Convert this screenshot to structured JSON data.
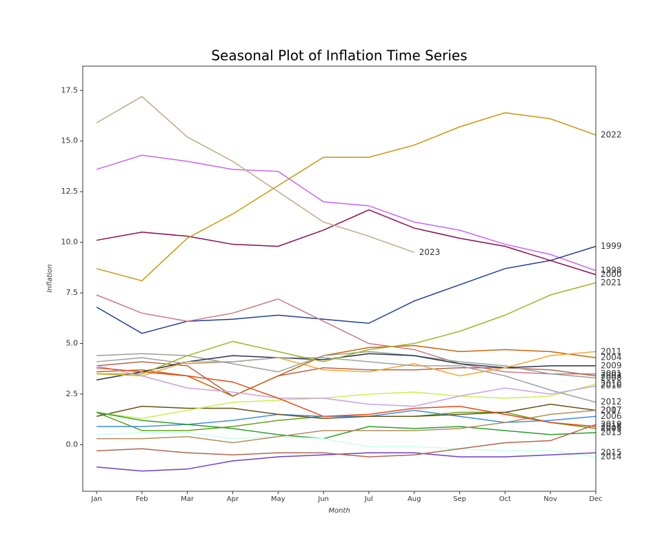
{
  "chart_data": {
    "type": "line",
    "title": "Seasonal Plot of Inflation Time Series",
    "xlabel": "Month",
    "ylabel": "Inflation",
    "categories": [
      "Jan",
      "Feb",
      "Mar",
      "Apr",
      "May",
      "Jun",
      "Jul",
      "Aug",
      "Sep",
      "Oct",
      "Nov",
      "Dec"
    ],
    "ylim": [
      -2.3,
      18.7
    ],
    "yticks": [
      {
        "value": 0,
        "label": "0.0"
      },
      {
        "value": 2.5,
        "label": "2.5"
      },
      {
        "value": 5,
        "label": "5.0"
      },
      {
        "value": 7.5,
        "label": "7.5"
      },
      {
        "value": 10,
        "label": "10.0"
      },
      {
        "value": 12.5,
        "label": "12.5"
      },
      {
        "value": 15,
        "label": "15.0"
      },
      {
        "value": 17.5,
        "label": "17.5"
      }
    ],
    "series": [
      {
        "name": "1998",
        "color": "#c864f0",
        "values": [
          13.6,
          14.3,
          14.0,
          13.6,
          13.5,
          12.0,
          11.8,
          11.0,
          10.6,
          9.9,
          9.4,
          8.6
        ]
      },
      {
        "name": "1999",
        "color": "#1e3c96",
        "values": [
          6.8,
          5.5,
          6.1,
          6.2,
          6.4,
          6.2,
          6.0,
          7.1,
          7.9,
          8.7,
          9.1,
          9.8
        ]
      },
      {
        "name": "2000",
        "color": "#8b0a50",
        "values": [
          10.1,
          10.5,
          10.3,
          9.9,
          9.8,
          10.6,
          11.6,
          10.7,
          10.2,
          9.8,
          9.1,
          8.4
        ]
      },
      {
        "name": "2001",
        "color": "#c87882",
        "values": [
          7.4,
          6.5,
          6.1,
          6.5,
          7.2,
          6.1,
          5.0,
          4.7,
          4.0,
          3.6,
          3.5,
          3.5
        ]
      },
      {
        "name": "2003",
        "color": "#b46446",
        "values": [
          3.9,
          4.1,
          3.9,
          2.4,
          3.4,
          3.8,
          3.7,
          3.7,
          3.8,
          3.8,
          3.7,
          3.4
        ]
      },
      {
        "name": "2004",
        "color": "#c8640a",
        "values": [
          3.6,
          3.7,
          3.4,
          2.4,
          3.4,
          4.4,
          4.8,
          4.9,
          4.6,
          4.7,
          4.6,
          4.3
        ]
      },
      {
        "name": "2005",
        "color": "#64a014",
        "values": [
          1.6,
          0.7,
          0.7,
          0.9,
          1.2,
          1.4,
          1.4,
          1.4,
          1.6,
          1.6,
          1.1,
          0.8
        ]
      },
      {
        "name": "2006",
        "color": "#3c8ce6",
        "values": [
          0.9,
          0.9,
          1.0,
          1.2,
          1.5,
          1.4,
          1.4,
          1.7,
          1.4,
          1.1,
          1.2,
          1.4
        ]
      },
      {
        "name": "2007",
        "color": "#645014",
        "values": [
          1.4,
          1.9,
          1.8,
          1.8,
          1.5,
          1.3,
          1.4,
          1.4,
          1.5,
          1.6,
          2.0,
          1.7
        ]
      },
      {
        "name": "2008",
        "color": "#96a096",
        "values": [
          4.4,
          4.5,
          4.4,
          4.0,
          3.6,
          4.4,
          4.6,
          4.4,
          4.1,
          3.9,
          3.5,
          3.3
        ]
      },
      {
        "name": "2009",
        "color": "#283250",
        "values": [
          3.2,
          3.6,
          4.1,
          4.4,
          4.3,
          4.2,
          4.5,
          4.4,
          4.0,
          3.8,
          3.9,
          3.9
        ]
      },
      {
        "name": "2010",
        "color": "#c8f050",
        "values": [
          1.6,
          1.3,
          1.7,
          2.1,
          2.2,
          2.3,
          2.5,
          2.6,
          2.4,
          2.3,
          2.4,
          3.0
        ]
      },
      {
        "name": "2011",
        "color": "#f0a830",
        "values": [
          3.5,
          3.4,
          4.1,
          4.1,
          4.3,
          3.7,
          3.6,
          4.0,
          3.4,
          3.8,
          4.4,
          4.6
        ]
      },
      {
        "name": "2012",
        "color": "#a0a0a0",
        "values": [
          4.1,
          4.3,
          4.0,
          4.1,
          4.3,
          4.3,
          4.1,
          3.9,
          3.9,
          3.4,
          2.7,
          2.1
        ]
      },
      {
        "name": "2013",
        "color": "#28a028",
        "values": [
          1.6,
          1.2,
          1.0,
          0.8,
          0.5,
          0.3,
          0.9,
          0.8,
          0.9,
          0.7,
          0.5,
          0.6
        ]
      },
      {
        "name": "2014",
        "color": "#c8fff0",
        "values": [
          0.5,
          0.6,
          0.6,
          0.3,
          0.4,
          0.3,
          -0.1,
          -0.1,
          -0.2,
          -0.3,
          -0.3,
          -0.6
        ]
      },
      {
        "name": "2015",
        "color": "#6e3cc8",
        "values": [
          -1.1,
          -1.3,
          -1.2,
          -0.8,
          -0.6,
          -0.5,
          -0.4,
          -0.4,
          -0.6,
          -0.6,
          -0.5,
          -0.4
        ]
      },
      {
        "name": "2016",
        "color": "#c8a0e6",
        "values": [
          3.9,
          3.4,
          2.8,
          2.6,
          2.3,
          2.3,
          2.0,
          1.9,
          2.4,
          2.8,
          2.5,
          2.9
        ]
      },
      {
        "name": "2017",
        "color": "#b48c5a",
        "values": [
          0.3,
          0.3,
          0.4,
          0.1,
          0.4,
          0.7,
          0.7,
          0.7,
          0.8,
          1.1,
          1.5,
          1.7
        ]
      },
      {
        "name": "2018",
        "color": "#e64614",
        "values": [
          3.8,
          3.6,
          3.4,
          3.1,
          2.3,
          1.4,
          1.5,
          1.8,
          1.9,
          1.5,
          1.1,
          0.9
        ]
      },
      {
        "name": "2019",
        "color": "#b4644b",
        "values": [
          -0.3,
          -0.2,
          -0.4,
          -0.5,
          -0.4,
          -0.4,
          -0.6,
          -0.5,
          -0.2,
          0.1,
          0.2,
          1.0
        ]
      },
      {
        "name": "2021",
        "color": "#a0b428",
        "values": [
          3.5,
          3.5,
          4.4,
          5.1,
          4.6,
          4.1,
          4.7,
          5.0,
          5.6,
          6.4,
          7.4,
          8.0
        ]
      },
      {
        "name": "2022",
        "color": "#c8960a",
        "values": [
          8.7,
          8.1,
          10.2,
          11.4,
          12.8,
          14.2,
          14.2,
          14.8,
          15.7,
          16.4,
          16.1,
          15.3
        ]
      },
      {
        "name": "2023",
        "color": "#c0a880",
        "values": [
          15.9,
          17.2,
          15.2,
          14.0,
          12.5,
          11.0,
          10.3,
          9.5,
          null,
          null,
          null,
          null
        ]
      }
    ]
  }
}
